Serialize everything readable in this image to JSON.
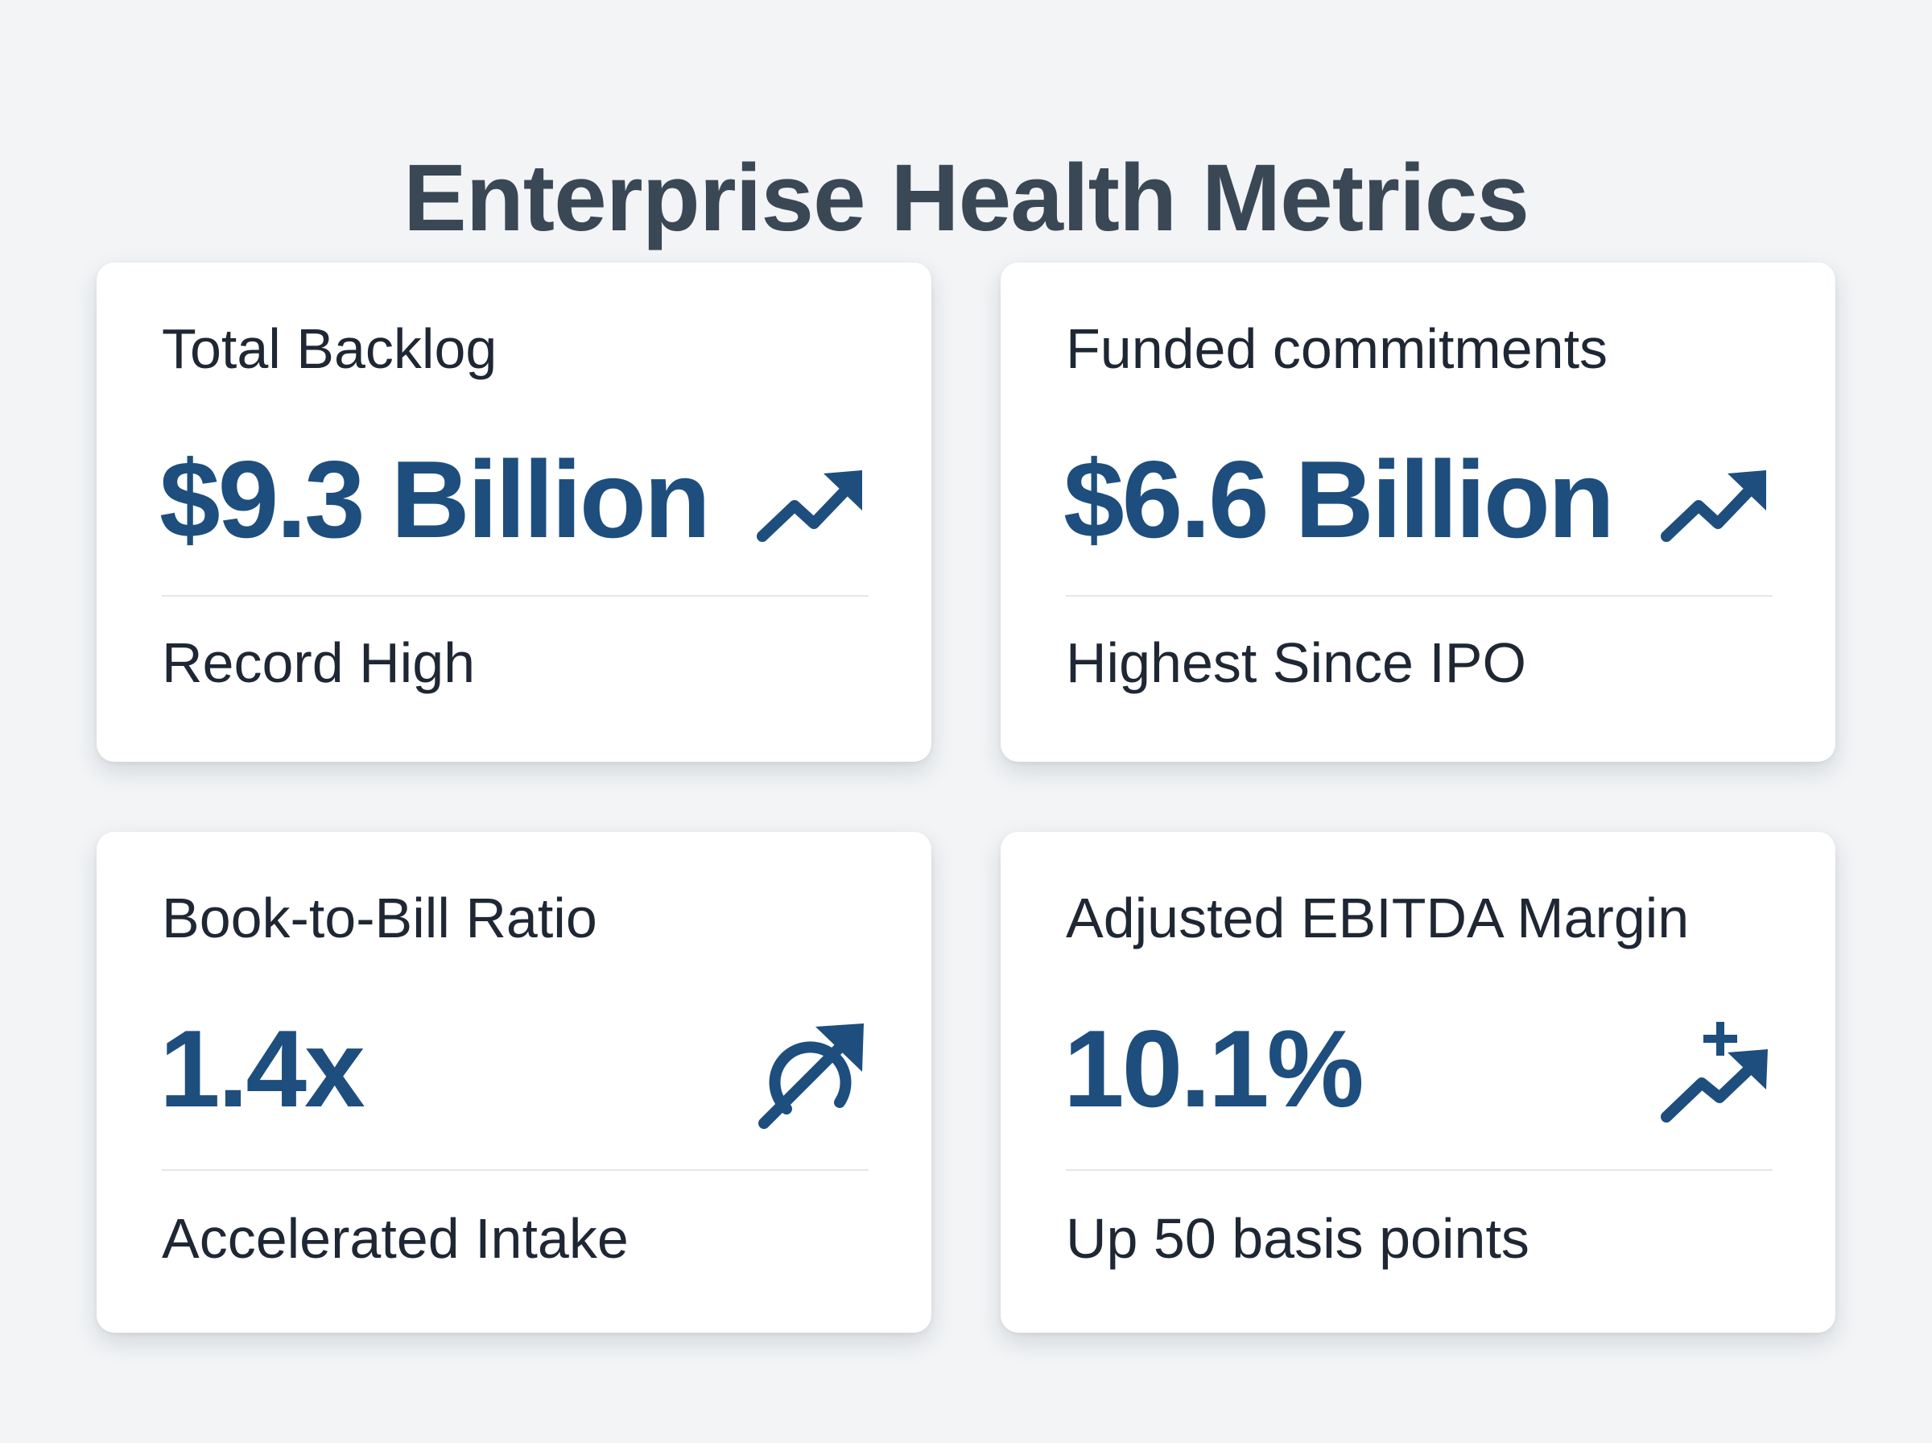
{
  "page": {
    "title": "Enterprise Health Metrics"
  },
  "colors": {
    "background": "#f2f4f6",
    "title": "#3a4755",
    "accent": "#1d4e7d",
    "text": "#1e2733",
    "card": "#ffffff",
    "divider": "#e3e6ea"
  },
  "cards": [
    {
      "label": "Total Backlog",
      "value": "$9.3 Billion",
      "note": "Record High",
      "icon": "trending-up-icon"
    },
    {
      "label": "Funded commitments",
      "value": "$6.6 Billion",
      "note": "Highest Since IPO",
      "icon": "trending-up-icon"
    },
    {
      "label": "Book-to-Bill Ratio",
      "value": "1.4x",
      "note": "Accelerated Intake",
      "icon": "circular-arrow-up-icon"
    },
    {
      "label": "Adjusted EBITDA Margin",
      "value": "10.1%",
      "note": "Up 50 basis points",
      "icon": "trending-up-plus-icon"
    }
  ]
}
